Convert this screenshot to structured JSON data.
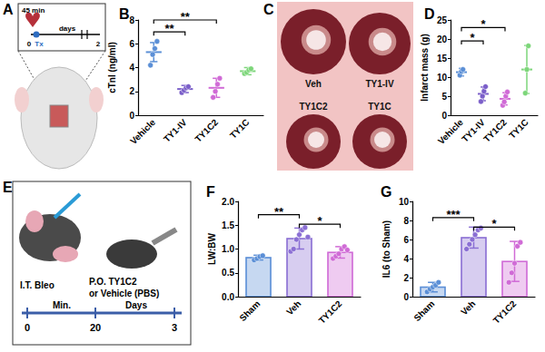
{
  "panels": {
    "A": {
      "label": "A",
      "time": "45 min",
      "treatment": "Tx",
      "axis_unit": "days",
      "ticks": [
        "0",
        "2"
      ]
    },
    "C": {
      "label": "C",
      "hearts": [
        "Veh",
        "TY1-IV",
        "TY1C2",
        "TY1C"
      ]
    },
    "E": {
      "label": "E",
      "route1": "I.T. Bleo",
      "route2": [
        "P.O. TY1C2",
        "or Vehicle (PBS)"
      ],
      "timeline": [
        "0",
        "Min.",
        "20",
        "Days",
        "3"
      ]
    }
  },
  "chart_data": [
    {
      "type": "scatter",
      "title": "B",
      "y_label": "cTnI (ng/ml)",
      "categories": [
        "Vehicle",
        "TY1-IV",
        "TY1C2",
        "TY1C"
      ],
      "values": [
        5.3,
        2.2,
        2.3,
        3.7
      ],
      "errors": [
        0.8,
        0.3,
        0.8,
        0.3
      ],
      "points": [
        [
          4.2,
          5.1,
          5.6,
          6.2
        ],
        [
          1.9,
          2.1,
          2.3,
          2.4
        ],
        [
          1.5,
          2.0,
          2.6,
          3.1
        ],
        [
          3.5,
          3.6,
          3.8,
          3.9
        ]
      ],
      "colors": [
        "#5b8fd6",
        "#7b5fc9",
        "#d06bd6",
        "#7dd67a"
      ],
      "ylim": [
        0,
        8
      ],
      "yticks": [
        0,
        2,
        4,
        6,
        8
      ],
      "grid": false,
      "annotations": [
        {
          "text": "**",
          "from": 0,
          "to": 1,
          "y": 7
        },
        {
          "text": "**",
          "from": 0,
          "to": 2,
          "y": 8
        }
      ]
    },
    {
      "type": "scatter",
      "title": "D",
      "y_label": "Infarct mass (g)",
      "categories": [
        "Vehicle",
        "TY1-IV",
        "TY1C2",
        "TY1C"
      ],
      "values": [
        11.3,
        5.6,
        4.3,
        12
      ],
      "errors": [
        1,
        1.8,
        1.6,
        6.3
      ],
      "points": [
        [
          10.5,
          11.5,
          12.0
        ],
        [
          3.6,
          5.0,
          6.3,
          7.5
        ],
        [
          2.6,
          3.5,
          5.0,
          6.1
        ],
        [
          5.8,
          12.0,
          18.2
        ]
      ],
      "colors": [
        "#5b8fd6",
        "#7b5fc9",
        "#d06bd6",
        "#7dd67a"
      ],
      "ylim": [
        0,
        25
      ],
      "yticks": [
        0,
        5,
        10,
        15,
        20,
        25
      ],
      "grid": false,
      "annotations": [
        {
          "text": "*",
          "from": 0,
          "to": 1,
          "y": 19.5
        },
        {
          "text": "*",
          "from": 0,
          "to": 2,
          "y": 23
        }
      ]
    },
    {
      "type": "bar",
      "title": "F",
      "y_label": "LW:BW",
      "categories": [
        "Sham",
        "Veh",
        "TY1C2"
      ],
      "values": [
        0.82,
        1.22,
        0.93
      ],
      "errors": [
        0.05,
        0.22,
        0.12
      ],
      "points": [
        [
          0.77,
          0.8,
          0.84,
          0.86
        ],
        [
          0.95,
          1.0,
          1.2,
          1.3,
          1.4,
          1.45,
          1.25
        ],
        [
          0.8,
          0.85,
          0.9,
          1.0,
          1.05,
          0.98
        ]
      ],
      "colors": [
        "#5b8fd6",
        "#8b6fd4",
        "#d06bd6"
      ],
      "ylim": [
        0,
        2
      ],
      "yticks": [
        {
          "value": 0,
          "label": "0.0"
        },
        0.5,
        {
          "value": 1,
          "label": "1.0"
        },
        1.5,
        {
          "value": 2,
          "label": "2.0"
        }
      ],
      "grid": false,
      "annotations": [
        {
          "text": "**",
          "from": 0,
          "to": 1,
          "y": 1.72
        },
        {
          "text": "*",
          "from": 1,
          "to": 2,
          "y": 1.52
        }
      ]
    },
    {
      "type": "bar",
      "title": "G",
      "y_label": "IL6 (to Sham)",
      "categories": [
        "Sham",
        "Veh",
        "TY1C2"
      ],
      "values": [
        1.0,
        6.2,
        3.7
      ],
      "errors": [
        0.5,
        1.1,
        2.1
      ],
      "points": [
        [
          0.5,
          0.8,
          1.0,
          1.2,
          1.5
        ],
        [
          5.0,
          5.5,
          6.0,
          6.5,
          7.0,
          7.2
        ],
        [
          1.5,
          2.5,
          3.5,
          5.3,
          5.7
        ]
      ],
      "colors": [
        "#5b8fd6",
        "#8b6fd4",
        "#d06bd6"
      ],
      "ylim": [
        0,
        10
      ],
      "yticks": [
        0,
        2,
        4,
        6,
        8,
        10
      ],
      "grid": false,
      "annotations": [
        {
          "text": "***",
          "from": 0,
          "to": 1,
          "y": 8.3
        },
        {
          "text": "*",
          "from": 1,
          "to": 2,
          "y": 7.3
        }
      ]
    }
  ]
}
